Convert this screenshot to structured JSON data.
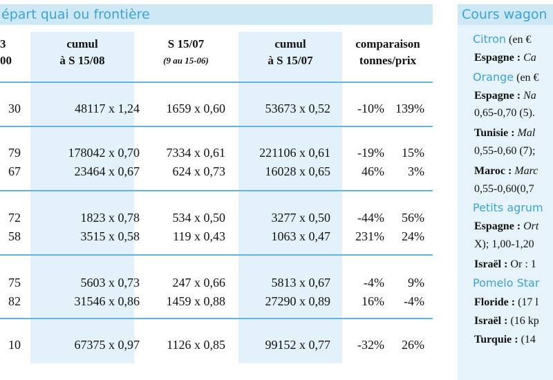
{
  "left_header": "épart quai ou frontière",
  "right_header": "Cours wagon",
  "columns": [
    {
      "line1": "3",
      "line2": "00"
    },
    {
      "line1": "cumul",
      "line2": "à S 15/08"
    },
    {
      "line1": "S 15/07",
      "line2": "(9 au 15-06)"
    },
    {
      "line1": "cumul",
      "line2": "à S 15/07"
    },
    {
      "line1": "comparaison",
      "line2": "tonnes/prix"
    }
  ],
  "rows": [
    {
      "c0": "30",
      "c1": "48117 x 1,24",
      "c2": "1659 x 0,60",
      "c3": "53673 x 0,52",
      "c4": "-10%",
      "c5": "139%"
    },
    {
      "c0": "79",
      "c1": "178042 x 0,70",
      "c2": "7334 x 0,61",
      "c3": "221106 x 0,61",
      "c4": "-19%",
      "c5": "15%"
    },
    {
      "c0": "67",
      "c1": "23464 x 0,67",
      "c2": "624 x 0,73",
      "c3": "16028 x 0,65",
      "c4": "46%",
      "c5": "3%"
    },
    {
      "c0": "72",
      "c1": "1823 x 0,78",
      "c2": "534 x 0,50",
      "c3": "3277 x 0,50",
      "c4": "-44%",
      "c5": "56%"
    },
    {
      "c0": "58",
      "c1": "3515 x 0,58",
      "c2": "119 x 0,43",
      "c3": "1063 x 0,47",
      "c4": "231%",
      "c5": "24%"
    },
    {
      "c0": "75",
      "c1": "5603 x 0,73",
      "c2": "247 x 0,66",
      "c3": "5813 x 0,67",
      "c4": "-4%",
      "c5": "9%"
    },
    {
      "c0": "82",
      "c1": "31546 x 0,86",
      "c2": "1459 x 0,88",
      "c3": "27290 x 0,89",
      "c4": "16%",
      "c5": "-4%"
    },
    {
      "c0": "10",
      "c1": "67375 x 0,97",
      "c2": "1126 x 0,85",
      "c3": "99152 x 0,77",
      "c4": "-32%",
      "c5": "26%"
    }
  ],
  "right_panel": [
    {
      "type": "cat",
      "name": "Citron",
      "unit": " (en €"
    },
    {
      "type": "text",
      "bold": "Espagne :",
      "rest": " Ca",
      "italic": true
    },
    {
      "type": "cat",
      "name": "Orange",
      "unit": " (en €"
    },
    {
      "type": "text",
      "bold": "Espagne :",
      "rest": " Na",
      "italic": true
    },
    {
      "type": "text",
      "bold": "",
      "rest": "0,65-0,70 (5).",
      "italic": false
    },
    {
      "type": "text",
      "bold": "Tunisie :",
      "rest": " Mal",
      "italic": true
    },
    {
      "type": "text",
      "bold": "",
      "rest": "0,55-0,60 (7);",
      "italic": false
    },
    {
      "type": "text",
      "bold": "Maroc :",
      "rest": " Marc",
      "italic": true
    },
    {
      "type": "text",
      "bold": "",
      "rest": "0,55-0,60(0,7",
      "italic": false
    },
    {
      "type": "cat",
      "name": "Petits agrum",
      "unit": ""
    },
    {
      "type": "text",
      "bold": "Espagne :",
      "rest": " Ort",
      "italic": true
    },
    {
      "type": "text",
      "bold": "",
      "rest": "X); 1,00-1,20",
      "italic": false
    },
    {
      "type": "text",
      "bold": "Israël :",
      "rest": " Or : 1",
      "italic": false
    },
    {
      "type": "cat",
      "name": "Pomelo Star",
      "unit": ""
    },
    {
      "type": "text",
      "bold": "Floride :",
      "rest": " (17 l",
      "italic": false
    },
    {
      "type": "text",
      "bold": "Israël :",
      "rest": " (16 kp",
      "italic": false
    },
    {
      "type": "text",
      "bold": "Turquie :",
      "rest": " (14",
      "italic": false
    }
  ]
}
